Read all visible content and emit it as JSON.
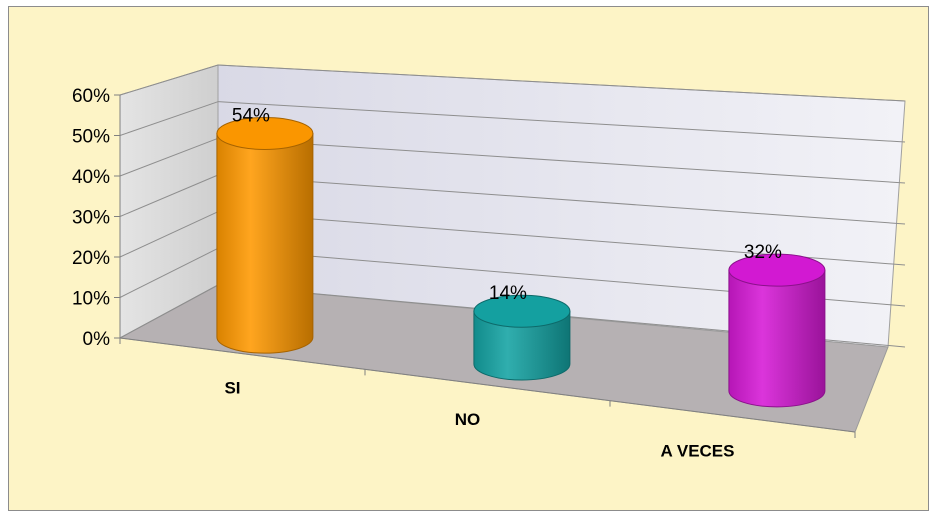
{
  "chart_data": {
    "type": "bar",
    "style": "3d-cylinder",
    "categories": [
      "SI",
      "NO",
      "A VECES"
    ],
    "values": [
      54,
      14,
      32
    ],
    "data_labels": [
      "54%",
      "14%",
      "32%"
    ],
    "colors": [
      "#ff9900",
      "#14a3a3",
      "#d61ad6"
    ],
    "ylim": [
      0,
      60
    ],
    "yticks": [
      0,
      10,
      20,
      30,
      40,
      50,
      60
    ],
    "ytick_labels": [
      "0%",
      "10%",
      "20%",
      "30%",
      "40%",
      "50%",
      "60%"
    ],
    "grid": true,
    "legend": "none",
    "title": "",
    "xlabel": "",
    "ylabel": ""
  }
}
